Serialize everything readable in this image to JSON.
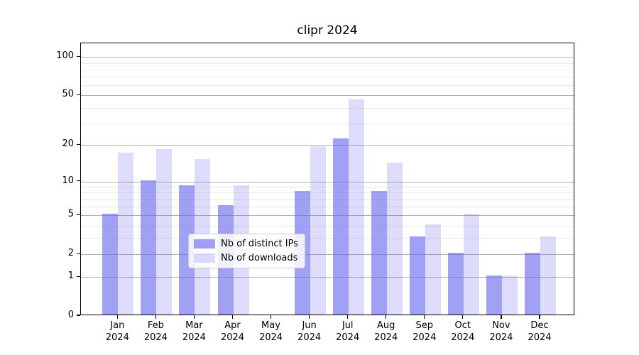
{
  "title": "clipr 2024",
  "legend": {
    "items": [
      {
        "label": "Nb of distinct IPs",
        "series": 0
      },
      {
        "label": "Nb of downloads",
        "series": 1
      }
    ]
  },
  "colors": {
    "bar_base": "#6666ee",
    "bar_dark_rendered": "#a0a0f5",
    "bar_light_rendered": "#ddddfb",
    "major_grid": "#b0b0b0",
    "minor_grid": "#e9e9e9",
    "spine": "#000000"
  },
  "y_axis": {
    "tick_labels": [
      "100",
      "50",
      "20",
      "10",
      "5",
      "2",
      "1",
      "0"
    ],
    "tick_values": [
      100,
      50,
      20,
      10,
      5,
      2,
      1,
      0
    ]
  },
  "x_axis": {
    "year": "2024",
    "months": [
      "Jan",
      "Feb",
      "Mar",
      "Apr",
      "May",
      "Jun",
      "Jul",
      "Aug",
      "Sep",
      "Oct",
      "Nov",
      "Dec"
    ]
  },
  "chart_data": {
    "type": "bar",
    "title": "clipr 2024",
    "categories": [
      "Jan 2024",
      "Feb 2024",
      "Mar 2024",
      "Apr 2024",
      "May 2024",
      "Jun 2024",
      "Jul 2024",
      "Aug 2024",
      "Sep 2024",
      "Oct 2024",
      "Nov 2024",
      "Dec 2024"
    ],
    "series": [
      {
        "name": "Nb of distinct IPs",
        "values": [
          5,
          10,
          9,
          6,
          0,
          8,
          22,
          8,
          3,
          2,
          1,
          2
        ]
      },
      {
        "name": "Nb of downloads",
        "values": [
          17,
          18,
          15,
          9,
          0,
          19,
          45,
          14,
          4,
          5,
          1,
          3
        ]
      }
    ],
    "xlabel": "",
    "ylabel": "",
    "y_scale": "log10(1+x)",
    "ylim": [
      0,
      128
    ],
    "y_major_ticks": [
      0,
      1,
      2,
      5,
      10,
      20,
      50,
      100
    ],
    "y_minor_gridlines": [
      3,
      4,
      6,
      7,
      8,
      9,
      30,
      40,
      60,
      70,
      80,
      90
    ],
    "grid": true,
    "legend_position": "lower center (inside axes)"
  }
}
